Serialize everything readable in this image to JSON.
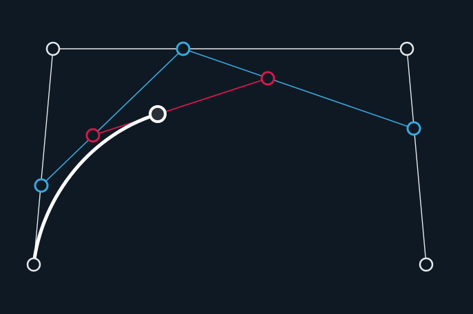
{
  "diagram": {
    "kind": "de-casteljau-bezier-construction",
    "t": 0.35,
    "colors": {
      "background": "#0f1923",
      "control": "#e6e9ec",
      "level1": "#3aa8e0",
      "level2": "#d6184a",
      "curve": "#ffffff"
    },
    "levels": [
      {
        "name": "control-point",
        "count": 4
      },
      {
        "name": "level1-point",
        "count": 3
      },
      {
        "name": "level2-point",
        "count": 2
      },
      {
        "name": "curve-point",
        "count": 1
      }
    ]
  }
}
